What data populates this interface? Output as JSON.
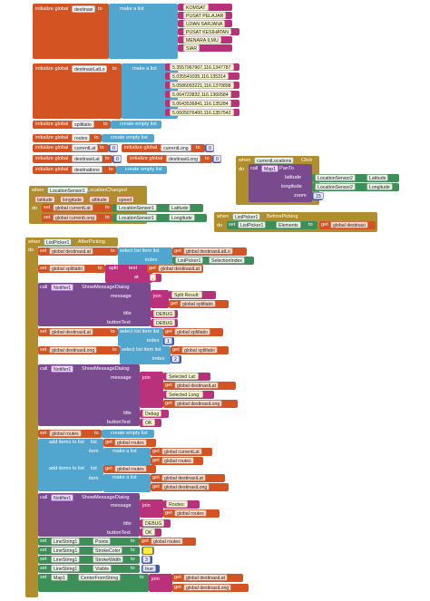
{
  "k": {
    "init": "initialize global",
    "to": "to",
    "make_list": "make a list",
    "create_empty": "create empty list",
    "set": "set",
    "get": "get",
    "when": "when",
    "do": "do",
    "call": "call",
    "select_item": "select list item list",
    "index": "index",
    "split": "split",
    "text": "text",
    "at": "at",
    "message": "message",
    "title": "title",
    "button_text": "buttonText",
    "join": "join",
    "add_items": "add items to list",
    "list": "list",
    "item": "item",
    "latitude": "latitude",
    "longitude": "longitude",
    "altitude": "altitude",
    "speed": "speed",
    "zoom": "zoom",
    "of_component": "of component"
  },
  "b1": {
    "name": "destinasi",
    "items": [
      "KOMSAT",
      "PUSAT PELAJAR",
      "UJIAN SARJANA",
      "PUSAT KESIHATAN",
      "MENARA ILMU",
      "SIAR"
    ]
  },
  "b2": {
    "name": "destinasiLatLo",
    "items": [
      "5.3557967907,116.1347787",
      "5.035541035,116.135314",
      "5.0586093221,116.1370898",
      "5.064723832,116.1360584",
      "5.0643536841,116.135284",
      "5.0605076400,116.1357542"
    ]
  },
  "inits": {
    "splitlatio": "splitlatio",
    "routes": "routes",
    "currentLat": "currentLat",
    "currentLong": "currentLong",
    "destinasiLat": "destinasiLat",
    "destinasiLong": "destinasiLong",
    "destinations": "destinations",
    "zero": "0"
  },
  "loc_event": {
    "component": "LocationSensor1",
    "event": "LocationChanged",
    "sensor": "LocationSensor1",
    "lat_prop": "Latitude",
    "long_prop": "Longitude"
  },
  "click_event": {
    "component": "currentLocations",
    "event": "Click",
    "map": "Map1",
    "method": "PanTo",
    "sensor": "LocationSensor2",
    "lat_prop": "Latitude",
    "long_prop": "Longitude",
    "zoom": "15"
  },
  "before_event": {
    "component": "ListPicker1",
    "event": "BeforePicking",
    "prop": "Elements",
    "global": "global destinasi"
  },
  "after_event": {
    "component": "ListPicker1",
    "event": "AfterPicking",
    "g_destinasiLat": "global destinasiLat",
    "g_destinasiLatLo": "global destinasiLatLo",
    "sel_index": "SelectionIndex",
    "g_splitlatio": "global splitlatio",
    "g_currentLat": "global currentLat",
    "g_currentLong": "global currentLong",
    "g_routes": "global routes",
    "g_destinasiLong": "global destinasiLong",
    "comma": ",",
    "notifier": "Notifier1",
    "show_msg": "ShowMessageDialog",
    "split_result": "Split Result:",
    "debug": "DEBUG",
    "debug2": "Debug",
    "ok": "OK",
    "one": "1",
    "two": "2",
    "selected_lat": "Selected Lat:",
    "selected_long": "Selected Long:",
    "routes_label": "Routes:",
    "line": "LineString1",
    "points": "Points",
    "stroke_color": "StrokeColor",
    "stroke_width": "StrokeWidth",
    "visible": "Visible",
    "true": "true",
    "width": "3",
    "map": "Map1",
    "center": "CenterFromString"
  },
  "colors": {
    "global": "#d35322",
    "list": "#50a6cf",
    "event": "#b08e2e",
    "location": "#3c8f57",
    "map": "#7a4a8f",
    "text": "#b9317a",
    "math": "#3b5ba8"
  }
}
